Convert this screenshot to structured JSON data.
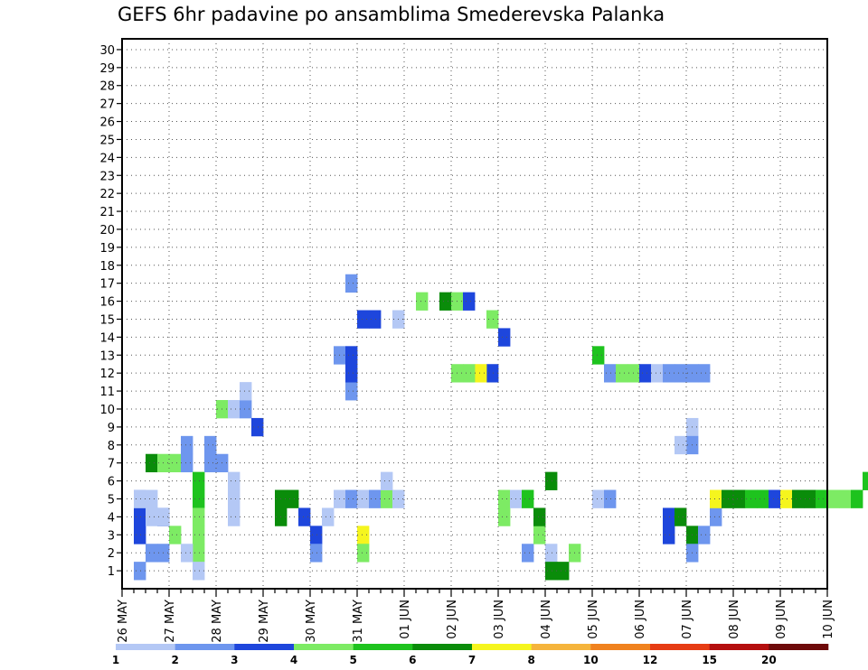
{
  "chart_data": {
    "type": "heatmap",
    "title": "GEFS 6hr padavine po ansamblima Smederevska Palanka",
    "xlabel": "",
    "ylabel": "",
    "x_tick_labels": [
      "26 MAY",
      "27 MAY",
      "28 MAY",
      "29 MAY",
      "30 MAY",
      "31 MAY",
      "01 JUN",
      "02 JUN",
      "03 JUN",
      "04 JUN",
      "05 JUN",
      "06 JUN",
      "07 JUN",
      "08 JUN",
      "09 JUN",
      "10 JUN"
    ],
    "y_tick_labels": [
      1,
      2,
      3,
      4,
      5,
      6,
      7,
      8,
      9,
      10,
      11,
      12,
      13,
      14,
      15,
      16,
      17,
      18,
      19,
      20,
      21,
      22,
      23,
      24,
      25,
      26,
      27,
      28,
      29,
      30
    ],
    "steps_per_day": 4,
    "members": 30,
    "grid": true,
    "legend": {
      "placement": "bottom",
      "thresholds": [
        "1",
        "2",
        "3",
        "4",
        "5",
        "6",
        "7",
        "8",
        "10",
        "12",
        "15",
        "20"
      ],
      "colors": [
        "#b4c8f5",
        "#6e96ee",
        "#1e46dc",
        "#7deb64",
        "#1ec31e",
        "#0a8c0a",
        "#f5f51e",
        "#f5b43c",
        "#f0821e",
        "#e63c14",
        "#b40f0f",
        "#6e0a0a"
      ]
    },
    "cells": [
      [
        1,
        0,
        1
      ],
      [
        1,
        2,
        2
      ],
      [
        1,
        3,
        2
      ],
      [
        1,
        4,
        2
      ],
      [
        1,
        4,
        0
      ],
      [
        2,
        4,
        0
      ],
      [
        2,
        3,
        0
      ],
      [
        3,
        3,
        2
      ],
      [
        3,
        3,
        0
      ],
      [
        2,
        1,
        1
      ],
      [
        4,
        2,
        3
      ],
      [
        3,
        1,
        1
      ],
      [
        2,
        6,
        5
      ],
      [
        3,
        6,
        3
      ],
      [
        4,
        6,
        3
      ],
      [
        5,
        6,
        1
      ],
      [
        6,
        5,
        4
      ],
      [
        6,
        4,
        4
      ],
      [
        6,
        3,
        3
      ],
      [
        6,
        2,
        3
      ],
      [
        6,
        1,
        3
      ],
      [
        5,
        1,
        0
      ],
      [
        6,
        0,
        0
      ],
      [
        5,
        7,
        1
      ],
      [
        7,
        6,
        1
      ],
      [
        7,
        7,
        1
      ],
      [
        8,
        6,
        1
      ],
      [
        9,
        5,
        0
      ],
      [
        9,
        4,
        0
      ],
      [
        9,
        3,
        0
      ],
      [
        8,
        9,
        3
      ],
      [
        9,
        9,
        0
      ],
      [
        10,
        9,
        1
      ],
      [
        11,
        8,
        2
      ],
      [
        10,
        10,
        0
      ],
      [
        13,
        4,
        5
      ],
      [
        13,
        3,
        5
      ],
      [
        14,
        4,
        5
      ],
      [
        15,
        3,
        2
      ],
      [
        16,
        2,
        2
      ],
      [
        16,
        1,
        1
      ],
      [
        17,
        3,
        0
      ],
      [
        18,
        4,
        0
      ],
      [
        19,
        4,
        1
      ],
      [
        20,
        4,
        0
      ],
      [
        20,
        2,
        6
      ],
      [
        20,
        1,
        3
      ],
      [
        21,
        4,
        1
      ],
      [
        22,
        4,
        3
      ],
      [
        23,
        4,
        0
      ],
      [
        22,
        5,
        0
      ],
      [
        19,
        10,
        1
      ],
      [
        18,
        12,
        1
      ],
      [
        19,
        12,
        2
      ],
      [
        19,
        11,
        2
      ],
      [
        19,
        16,
        1
      ],
      [
        20,
        14,
        2
      ],
      [
        21,
        14,
        2
      ],
      [
        23,
        14,
        0
      ],
      [
        25,
        15,
        3
      ],
      [
        27,
        15,
        5
      ],
      [
        28,
        15,
        3
      ],
      [
        29,
        15,
        2
      ],
      [
        31,
        14,
        3
      ],
      [
        31,
        11,
        2
      ],
      [
        30,
        11,
        6
      ],
      [
        29,
        11,
        3
      ],
      [
        28,
        11,
        3
      ],
      [
        32,
        13,
        2
      ],
      [
        32,
        4,
        3
      ],
      [
        32,
        3,
        3
      ],
      [
        33,
        4,
        0
      ],
      [
        34,
        4,
        4
      ],
      [
        34,
        1,
        1
      ],
      [
        35,
        2,
        3
      ],
      [
        35,
        3,
        5
      ],
      [
        36,
        5,
        5
      ],
      [
        36,
        1,
        0
      ],
      [
        36,
        0,
        5
      ],
      [
        37,
        0,
        5
      ],
      [
        38,
        1,
        3
      ],
      [
        40,
        4,
        0
      ],
      [
        41,
        4,
        1
      ],
      [
        40,
        12,
        4
      ],
      [
        41,
        11,
        1
      ],
      [
        42,
        11,
        3
      ],
      [
        43,
        11,
        3
      ],
      [
        44,
        11,
        2
      ],
      [
        45,
        11,
        0
      ],
      [
        46,
        11,
        1
      ],
      [
        47,
        11,
        1
      ],
      [
        48,
        11,
        1
      ],
      [
        49,
        11,
        1
      ],
      [
        48,
        8,
        0
      ],
      [
        48,
        7,
        1
      ],
      [
        47,
        7,
        0
      ],
      [
        46,
        2,
        2
      ],
      [
        46,
        3,
        2
      ],
      [
        47,
        3,
        5
      ],
      [
        48,
        2,
        5
      ],
      [
        48,
        1,
        1
      ],
      [
        49,
        2,
        1
      ],
      [
        50,
        3,
        1
      ],
      [
        50,
        4,
        6
      ],
      [
        51,
        4,
        5
      ],
      [
        52,
        4,
        5
      ],
      [
        53,
        4,
        4
      ],
      [
        54,
        4,
        4
      ],
      [
        55,
        4,
        2
      ],
      [
        56,
        4,
        6
      ],
      [
        57,
        4,
        5
      ],
      [
        58,
        4,
        5
      ],
      [
        59,
        4,
        4
      ],
      [
        60,
        4,
        3
      ],
      [
        61,
        4,
        3
      ],
      [
        62,
        4,
        4
      ],
      [
        63,
        5,
        4
      ],
      [
        64,
        5,
        3
      ],
      [
        65,
        5,
        3
      ],
      [
        66,
        5,
        2
      ],
      [
        67,
        5,
        1
      ],
      [
        68,
        6,
        1
      ],
      [
        67,
        3,
        1
      ],
      [
        66,
        7,
        4
      ],
      [
        67,
        7,
        2
      ],
      [
        68,
        8,
        7
      ],
      [
        69,
        8,
        5
      ],
      [
        70,
        8,
        5
      ],
      [
        71,
        8,
        5
      ],
      [
        72,
        8,
        2
      ],
      [
        73,
        7,
        0
      ],
      [
        74,
        8,
        1
      ],
      [
        75,
        8,
        0
      ],
      [
        76,
        8,
        0
      ],
      [
        77,
        8,
        1
      ],
      [
        78,
        8,
        0
      ],
      [
        79,
        8,
        0
      ],
      [
        80,
        8,
        3
      ],
      [
        81,
        8,
        3
      ],
      [
        82,
        8,
        0
      ],
      [
        83,
        8,
        1
      ],
      [
        84,
        8,
        1
      ],
      [
        85,
        8,
        1
      ],
      [
        86,
        8,
        2
      ],
      [
        87,
        8,
        3
      ],
      [
        88,
        8,
        3
      ],
      [
        89,
        8,
        1
      ],
      [
        90,
        8,
        4
      ],
      [
        91,
        8,
        2
      ],
      [
        92,
        8,
        0
      ],
      [
        93,
        8,
        0
      ],
      [
        94,
        8,
        1
      ],
      [
        95,
        8,
        1
      ],
      [
        96,
        8,
        0
      ],
      [
        97,
        8,
        0
      ],
      [
        98,
        8,
        1
      ],
      [
        99,
        8,
        0
      ],
      [
        100,
        8,
        0
      ],
      [
        101,
        8,
        1
      ],
      [
        102,
        8,
        0
      ],
      [
        103,
        8,
        0
      ],
      [
        104,
        8,
        1
      ],
      [
        105,
        8,
        1
      ],
      [
        106,
        8,
        0
      ],
      [
        107,
        8,
        1
      ],
      [
        108,
        8,
        1
      ],
      [
        109,
        8,
        0
      ],
      [
        110,
        8,
        0
      ],
      [
        111,
        8,
        1
      ],
      [
        112,
        8,
        0
      ],
      [
        113,
        8,
        0
      ],
      [
        114,
        8,
        1
      ],
      [
        115,
        8,
        1
      ],
      [
        116,
        8,
        1
      ],
      [
        117,
        8,
        0
      ],
      [
        118,
        8,
        0
      ],
      [
        119,
        8,
        0
      ]
    ]
  }
}
